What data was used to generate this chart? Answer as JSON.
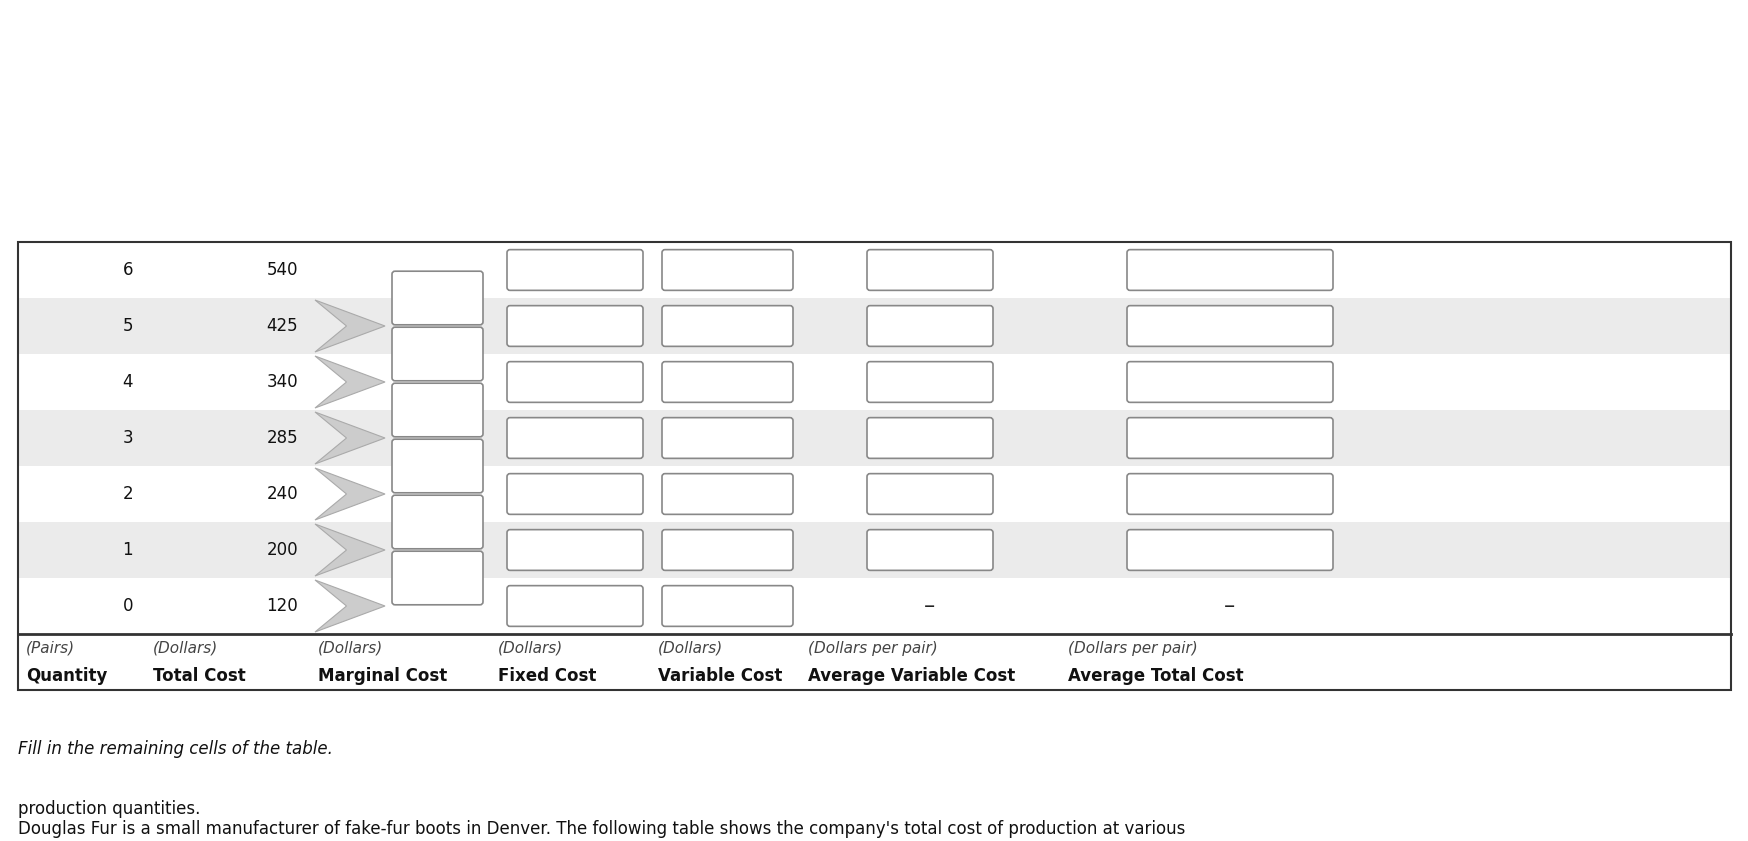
{
  "title_line1": "Douglas Fur is a small manufacturer of fake-fur boots in Denver. The following table shows the company's total cost of production at various",
  "title_line2": "production quantities.",
  "subtitle_text": "Fill in the remaining cells of the table.",
  "col_headers_line1": [
    "Quantity",
    "Total Cost",
    "Marginal Cost",
    "Fixed Cost",
    "Variable Cost",
    "Average Variable Cost",
    "Average Total Cost"
  ],
  "col_headers_line2": [
    "(Pairs)",
    "(Dollars)",
    "(Dollars)",
    "(Dollars)",
    "(Dollars)",
    "(Dollars per pair)",
    "(Dollars per pair)"
  ],
  "quantities": [
    0,
    1,
    2,
    3,
    4,
    5,
    6
  ],
  "total_costs": [
    120,
    200,
    240,
    285,
    340,
    425,
    540
  ],
  "bg_color": "#ffffff",
  "table_border_color": "#333333",
  "row_alt_color": "#ebebeb",
  "row_white_color": "#ffffff",
  "box_edge_color": "#888888",
  "box_fill": "#ffffff",
  "chevron_fill": "#cccccc",
  "chevron_edge": "#aaaaaa",
  "dash_color": "#333333",
  "header_font_size": 12,
  "body_font_size": 12,
  "title_font_size": 12,
  "subtitle_font_size": 12
}
